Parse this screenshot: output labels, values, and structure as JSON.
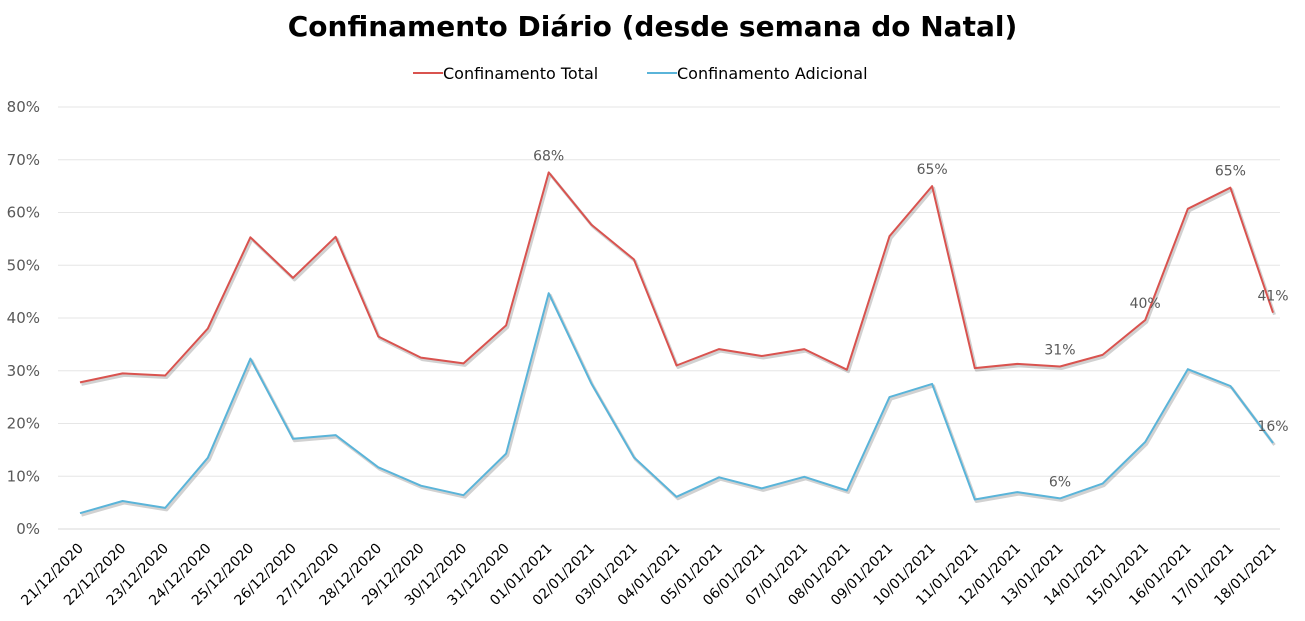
{
  "chart_data": {
    "type": "line",
    "title": "Confinamento Diário (desde semana do Natal)",
    "xlabel": "",
    "ylabel": "",
    "ylim": [
      0,
      0.8
    ],
    "yticks": [
      "0%",
      "10%",
      "20%",
      "30%",
      "40%",
      "50%",
      "60%",
      "70%",
      "80%"
    ],
    "grid": true,
    "legend": "top",
    "categories": [
      "21/12/2020",
      "22/12/2020",
      "23/12/2020",
      "24/12/2020",
      "25/12/2020",
      "26/12/2020",
      "27/12/2020",
      "28/12/2020",
      "29/12/2020",
      "30/12/2020",
      "31/12/2020",
      "01/01/2021",
      "02/01/2021",
      "03/01/2021",
      "04/01/2021",
      "05/01/2021",
      "06/01/2021",
      "07/01/2021",
      "08/01/2021",
      "09/01/2021",
      "10/01/2021",
      "11/01/2021",
      "12/01/2021",
      "13/01/2021",
      "14/01/2021",
      "15/01/2021",
      "16/01/2021",
      "17/01/2021",
      "18/01/2021"
    ],
    "series": [
      {
        "name": "Confinamento Total",
        "color": "#d9534f",
        "values": [
          0.278,
          0.295,
          0.291,
          0.38,
          0.553,
          0.476,
          0.554,
          0.365,
          0.325,
          0.314,
          0.386,
          0.676,
          0.577,
          0.511,
          0.31,
          0.341,
          0.328,
          0.341,
          0.302,
          0.555,
          0.65,
          0.305,
          0.313,
          0.308,
          0.33,
          0.396,
          0.607,
          0.647,
          0.41
        ],
        "labels": [
          {
            "index": 11,
            "text": "68%"
          },
          {
            "index": 20,
            "text": "65%"
          },
          {
            "index": 23,
            "text": "31%"
          },
          {
            "index": 25,
            "text": "40%"
          },
          {
            "index": 27,
            "text": "65%"
          },
          {
            "index": 28,
            "text": "41%"
          }
        ]
      },
      {
        "name": "Confinamento Adicional",
        "color": "#5ab4d9",
        "values": [
          0.03,
          0.053,
          0.04,
          0.135,
          0.323,
          0.171,
          0.178,
          0.117,
          0.082,
          0.064,
          0.143,
          0.447,
          0.276,
          0.136,
          0.061,
          0.098,
          0.077,
          0.099,
          0.073,
          0.25,
          0.275,
          0.056,
          0.07,
          0.058,
          0.086,
          0.165,
          0.303,
          0.271,
          0.163
        ],
        "labels": [
          {
            "index": 23,
            "text": "6%"
          },
          {
            "index": 28,
            "text": "16%"
          }
        ]
      }
    ]
  }
}
